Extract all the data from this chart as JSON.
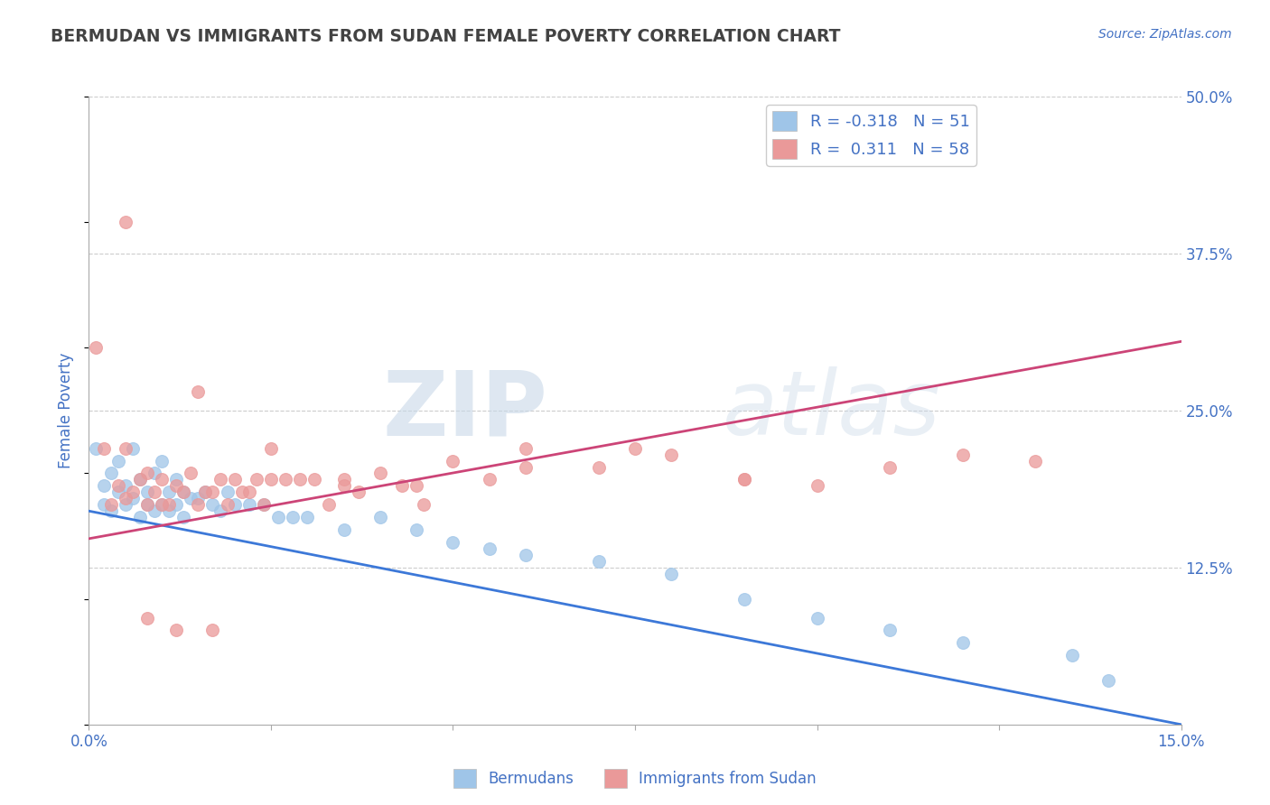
{
  "title": "BERMUDAN VS IMMIGRANTS FROM SUDAN FEMALE POVERTY CORRELATION CHART",
  "source": "Source: ZipAtlas.com",
  "ylabel": "Female Poverty",
  "xlim": [
    0.0,
    0.15
  ],
  "ylim": [
    0.0,
    0.5
  ],
  "blue_color": "#9fc5e8",
  "pink_color": "#ea9999",
  "trend_blue": "#3c78d8",
  "trend_pink": "#cc4477",
  "R_blue": -0.318,
  "N_blue": 51,
  "R_pink": 0.311,
  "N_pink": 58,
  "blue_trend_y0": 0.17,
  "blue_trend_y1": 0.0,
  "pink_trend_y0": 0.148,
  "pink_trend_y1": 0.305,
  "blue_scatter_x": [
    0.001,
    0.002,
    0.002,
    0.003,
    0.003,
    0.004,
    0.004,
    0.005,
    0.005,
    0.006,
    0.006,
    0.007,
    0.007,
    0.008,
    0.008,
    0.009,
    0.009,
    0.01,
    0.01,
    0.011,
    0.011,
    0.012,
    0.012,
    0.013,
    0.013,
    0.014,
    0.015,
    0.016,
    0.017,
    0.018,
    0.019,
    0.02,
    0.022,
    0.024,
    0.026,
    0.028,
    0.03,
    0.035,
    0.04,
    0.045,
    0.05,
    0.055,
    0.06,
    0.07,
    0.08,
    0.09,
    0.1,
    0.11,
    0.12,
    0.135,
    0.14
  ],
  "blue_scatter_y": [
    0.22,
    0.19,
    0.175,
    0.2,
    0.17,
    0.21,
    0.185,
    0.19,
    0.175,
    0.22,
    0.18,
    0.195,
    0.165,
    0.185,
    0.175,
    0.2,
    0.17,
    0.21,
    0.175,
    0.185,
    0.17,
    0.195,
    0.175,
    0.185,
    0.165,
    0.18,
    0.18,
    0.185,
    0.175,
    0.17,
    0.185,
    0.175,
    0.175,
    0.175,
    0.165,
    0.165,
    0.165,
    0.155,
    0.165,
    0.155,
    0.145,
    0.14,
    0.135,
    0.13,
    0.12,
    0.1,
    0.085,
    0.075,
    0.065,
    0.055,
    0.035
  ],
  "pink_scatter_x": [
    0.001,
    0.002,
    0.003,
    0.004,
    0.005,
    0.005,
    0.006,
    0.007,
    0.008,
    0.008,
    0.009,
    0.01,
    0.011,
    0.012,
    0.013,
    0.014,
    0.015,
    0.016,
    0.017,
    0.018,
    0.019,
    0.02,
    0.021,
    0.022,
    0.023,
    0.024,
    0.025,
    0.027,
    0.029,
    0.031,
    0.033,
    0.035,
    0.037,
    0.04,
    0.043,
    0.046,
    0.05,
    0.055,
    0.06,
    0.07,
    0.08,
    0.09,
    0.1,
    0.11,
    0.12,
    0.13,
    0.015,
    0.025,
    0.035,
    0.045,
    0.06,
    0.075,
    0.09,
    0.005,
    0.01,
    0.008,
    0.012,
    0.017
  ],
  "pink_scatter_y": [
    0.3,
    0.22,
    0.175,
    0.19,
    0.22,
    0.18,
    0.185,
    0.195,
    0.2,
    0.175,
    0.185,
    0.195,
    0.175,
    0.19,
    0.185,
    0.2,
    0.175,
    0.185,
    0.185,
    0.195,
    0.175,
    0.195,
    0.185,
    0.185,
    0.195,
    0.175,
    0.195,
    0.195,
    0.195,
    0.195,
    0.175,
    0.195,
    0.185,
    0.2,
    0.19,
    0.175,
    0.21,
    0.195,
    0.22,
    0.205,
    0.215,
    0.195,
    0.19,
    0.205,
    0.215,
    0.21,
    0.265,
    0.22,
    0.19,
    0.19,
    0.205,
    0.22,
    0.195,
    0.4,
    0.175,
    0.085,
    0.075,
    0.075
  ],
  "watermark_zip": "ZIP",
  "watermark_atlas": "atlas",
  "title_color": "#434343",
  "axis_color": "#4472c4",
  "legend_fontsize": 13,
  "title_fontsize": 13.5,
  "grid_color": "#cccccc",
  "spine_color": "#aaaaaa"
}
